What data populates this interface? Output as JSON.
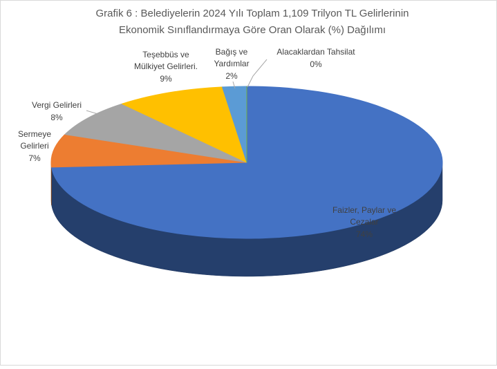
{
  "chart_data": {
    "type": "pie3d",
    "title": [
      "Grafik 6 : Belediyelerin 2024 Yılı Toplam 1,109  Trilyon  TL Gelirlerinin",
      "Ekonomik Sınıflandırmaya Göre  Oran Olarak (%) Dağılımı"
    ],
    "categories": [
      [
        "Faizler, Paylar ve",
        "Cezalar"
      ],
      [
        "Sermeye",
        "Gelirleri"
      ],
      [
        "Vergi Gelirleri"
      ],
      [
        "Teşebbüs ve",
        "Mülkiyet Gelirleri."
      ],
      [
        "Bağış ve",
        "Yardımlar"
      ],
      [
        "Alacaklardan Tahsilat"
      ]
    ],
    "values": [
      74,
      7,
      8,
      9,
      2,
      0
    ],
    "value_labels": [
      "74%",
      "7%",
      "8%",
      "9%",
      "2%",
      "0%"
    ],
    "colors": [
      "#4472c4",
      "#ed7d31",
      "#a5a5a5",
      "#ffc000",
      "#5b9bd5",
      "#70ad47"
    ]
  }
}
